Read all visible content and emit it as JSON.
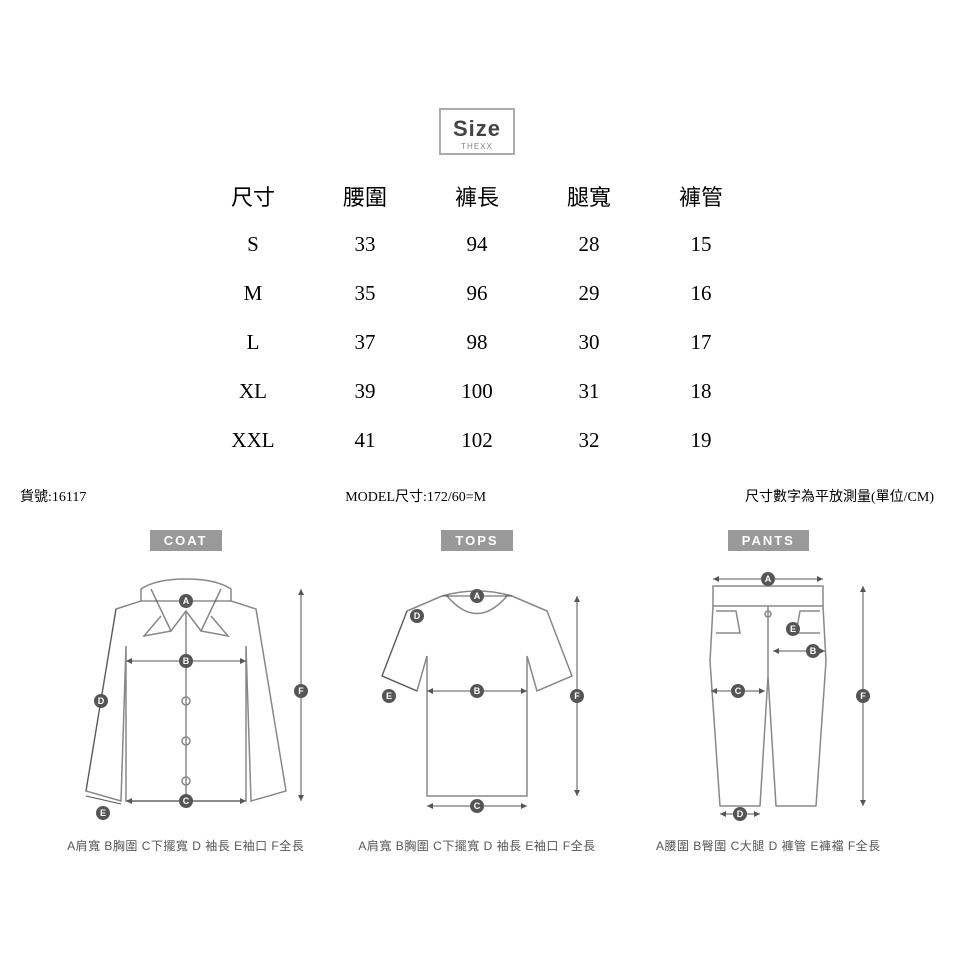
{
  "header": {
    "title": "Size",
    "subtitle": "THEXX"
  },
  "table": {
    "columns": [
      "尺寸",
      "腰圍",
      "褲長",
      "腿寬",
      "褲管"
    ],
    "rows": [
      [
        "S",
        "33",
        "94",
        "28",
        "15"
      ],
      [
        "M",
        "35",
        "96",
        "29",
        "16"
      ],
      [
        "L",
        "37",
        "98",
        "30",
        "17"
      ],
      [
        "XL",
        "39",
        "100",
        "31",
        "18"
      ],
      [
        "XXL",
        "41",
        "102",
        "32",
        "19"
      ]
    ]
  },
  "meta": {
    "sku_label": "貨號:16117",
    "model_label": "MODEL尺寸:172/60=M",
    "unit_label": "尺寸數字為平放測量(單位/CM)"
  },
  "diagrams": {
    "coat": {
      "label": "COAT",
      "legend": "A肩寬 B胸圍 C下擺寬 D 袖長 E袖口 F全長"
    },
    "tops": {
      "label": "TOPS",
      "legend": "A肩寬 B胸圍 C下擺寬 D 袖長 E袖口 F全長"
    },
    "pants": {
      "label": "PANTS",
      "legend": "A腰圍 B臀圍 C大腿 D 褲管 E褲襠 F全長"
    }
  },
  "colors": {
    "background": "#ffffff",
    "text": "#000000",
    "box_border": "#aaaaaa",
    "label_bg": "#999999",
    "garment_stroke": "#888888",
    "marker_fill": "#555555"
  }
}
